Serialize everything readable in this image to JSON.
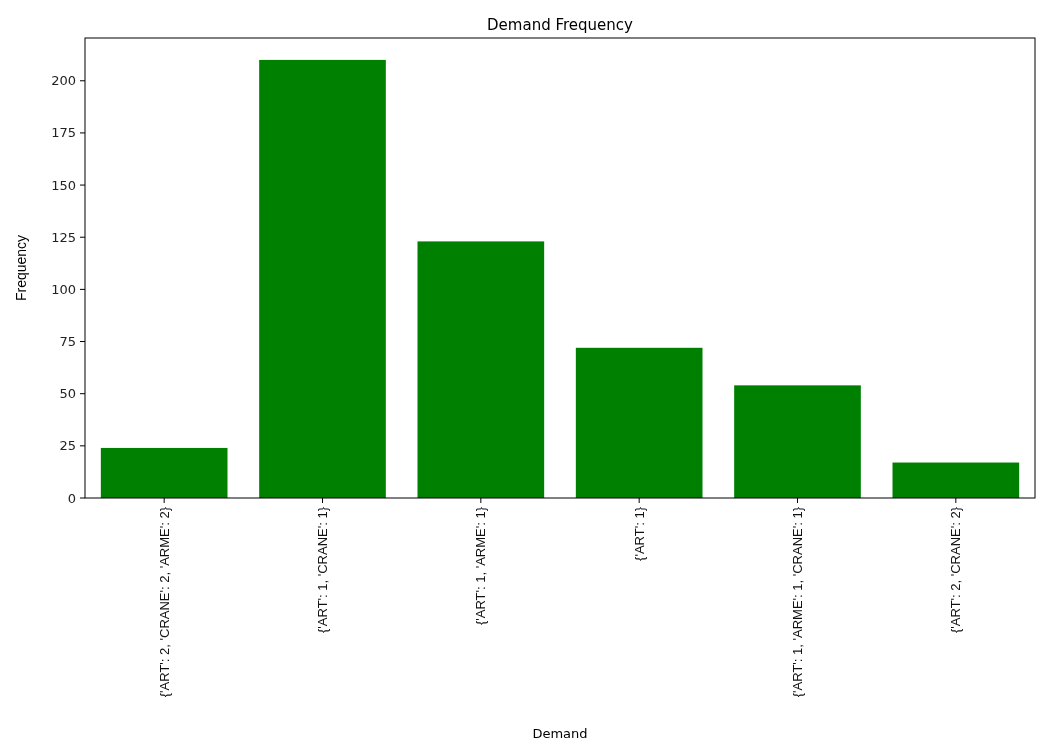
{
  "chart_data": {
    "type": "bar",
    "title": "Demand Frequency",
    "xlabel": "Demand",
    "ylabel": "Frequency",
    "categories": [
      "{'ART': 2, 'CRANE': 2, 'ARME': 2}",
      "{'ART': 1, 'CRANE': 1}",
      "{'ART': 1, 'ARME': 1}",
      "{'ART': 1}",
      "{'ART': 1, 'ARME': 1, 'CRANE': 1}",
      "{'ART': 2, 'CRANE': 2}"
    ],
    "values": [
      24,
      210,
      123,
      72,
      54,
      17
    ],
    "color": "#008000",
    "ylim": [
      0,
      220.5
    ],
    "yticks": [
      0,
      25,
      50,
      75,
      100,
      125,
      150,
      175,
      200
    ],
    "grid": false
  }
}
